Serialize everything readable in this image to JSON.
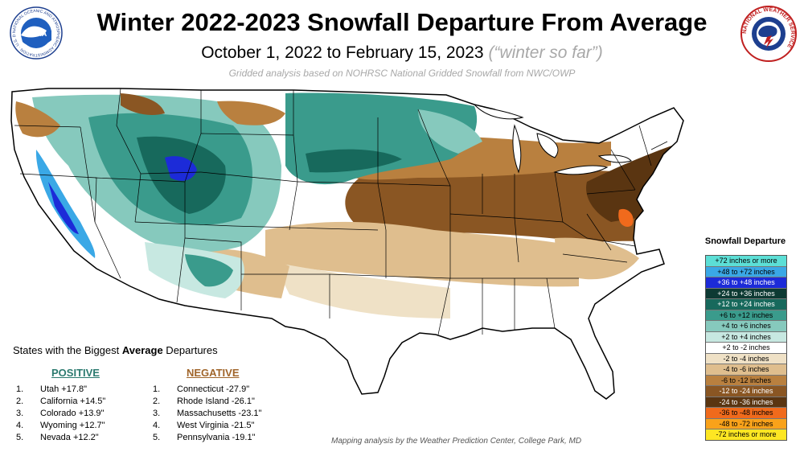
{
  "header": {
    "title": "Winter 2022-2023 Snowfall Departure From Average",
    "subtitle_dates": "October 1, 2022 to February 15, 2023",
    "subtitle_note": "(“winter so far”)",
    "source_note": "Gridded analysis based on NOHRSC National Gridded Snowfall from NWC/OWP"
  },
  "logos": {
    "noaa_icon": "noaa-seal-icon",
    "nws_icon": "nws-seal-icon",
    "noaa_text": "NOAA",
    "noaa_ring_text": "NATIONAL OCEANIC AND ATMOSPHERIC ADMINISTRATION · U.S. DEPARTMENT OF COMMERCE",
    "nws_ring_text": "NATIONAL WEATHER SERVICE"
  },
  "legend": {
    "title": "Snowfall  Departure",
    "items": [
      {
        "label": "+72 inches or more",
        "color": "#5cdfd6",
        "text_color": "#000000"
      },
      {
        "label": "+48 to +72 inches",
        "color": "#3aa8e6",
        "text_color": "#000000"
      },
      {
        "label": "+36 to +48 inches",
        "color": "#1c2bd8",
        "text_color": "#ffffff"
      },
      {
        "label": "+24 to +36 inches",
        "color": "#0d3a33",
        "text_color": "#ffffff"
      },
      {
        "label": "+12 to +24 inches",
        "color": "#17695c",
        "text_color": "#ffffff"
      },
      {
        "label": "+6 to +12 inches",
        "color": "#3a9b8c",
        "text_color": "#000000"
      },
      {
        "label": "+4 to +6 inches",
        "color": "#86c9bd",
        "text_color": "#000000"
      },
      {
        "label": "+2 to +4 inches",
        "color": "#c7e8e1",
        "text_color": "#000000"
      },
      {
        "label": "+2 to -2 inches",
        "color": "#ffffff",
        "text_color": "#000000"
      },
      {
        "label": "-2 to -4 inches",
        "color": "#efe1c6",
        "text_color": "#000000"
      },
      {
        "label": "-4 to -6 inches",
        "color": "#dfbe8e",
        "text_color": "#000000"
      },
      {
        "label": "-6 to -12 inches",
        "color": "#b9803f",
        "text_color": "#000000"
      },
      {
        "label": "-12 to -24 inches",
        "color": "#8a5623",
        "text_color": "#ffffff"
      },
      {
        "label": "-24 to -36 inches",
        "color": "#5a3511",
        "text_color": "#ffffff"
      },
      {
        "label": "-36 to -48 inches",
        "color": "#f06a1c",
        "text_color": "#000000"
      },
      {
        "label": "-48 to -72 inches",
        "color": "#f9a21a",
        "text_color": "#000000"
      },
      {
        "label": "-72 inches or more",
        "color": "#fde623",
        "text_color": "#000000"
      }
    ]
  },
  "states": {
    "heading_pre": "States with the Biggest ",
    "heading_bold": "Average",
    "heading_post": " Departures",
    "positive_label": "POSITIVE",
    "negative_label": "NEGATIVE",
    "positive": [
      {
        "rank": "1.",
        "text": "Utah +17.8\""
      },
      {
        "rank": "2.",
        "text": "California +14.5\""
      },
      {
        "rank": "3.",
        "text": "Colorado +13.9\""
      },
      {
        "rank": "4.",
        "text": "Wyoming +12.7\""
      },
      {
        "rank": "5.",
        "text": "Nevada +12.2\""
      }
    ],
    "negative": [
      {
        "rank": "1.",
        "text": "Connecticut -27.9\""
      },
      {
        "rank": "2.",
        "text": "Rhode Island -26.1\""
      },
      {
        "rank": "3.",
        "text": "Massachusetts -23.1\""
      },
      {
        "rank": "4.",
        "text": "West Virginia -21.5\""
      },
      {
        "rank": "5.",
        "text": "Pennsylvania -19.1\""
      }
    ]
  },
  "credit": "Mapping analysis by the Weather Prediction Center, College Park, MD"
}
